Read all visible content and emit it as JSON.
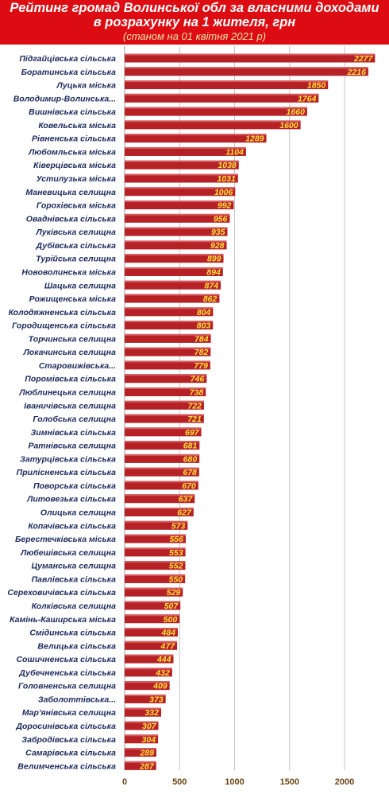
{
  "header": {
    "title_line1": "Рейтинг громад Волинської обл за власними доходами",
    "title_line2": "в розрахунку на 1 жителя, грн",
    "subtitle": "(станом на 01 квітня 2021 р)"
  },
  "colors": {
    "header_bg": "#dc0c12",
    "bar": "#b62126",
    "value_text": "#ffe23a",
    "category_text": "#1b2a5c",
    "tick_text": "#6b4416"
  },
  "chart_data": {
    "type": "bar",
    "orientation": "horizontal",
    "title": "Рейтинг громад Волинської обл за власними доходами в розрахунку на 1 жителя, грн",
    "subtitle": "(станом на 01 квітня 2021 р)",
    "xlabel": "",
    "ylabel": "",
    "xlim": [
      0,
      2200
    ],
    "xticks": [
      0,
      500,
      1000,
      1500,
      2000
    ],
    "grid": true,
    "categories": [
      "Підгайцівська сільська",
      "Боратинська сільська",
      "Луцька міська",
      "Володимир-Волинська...",
      "Вишнівська сільська",
      "Ковельська міська",
      "Рівненська сільська",
      "Любомльська міська",
      "Ківерцівська міська",
      "Устилузька міська",
      "Маневицька селищна",
      "Горохівська міська",
      "Оваднівська сільська",
      "Луківська селищна",
      "Дубівська сільська",
      "Турійська селищна",
      "Нововолинська міська",
      "Шацька селищна",
      "Рожищенська міська",
      "Колодяжненська сільська",
      "Городищенська сільська",
      "Торчинська селищна",
      "Локачинська селищна",
      "Старовижівська...",
      "Поромівська сільська",
      "Люблинецька селищна",
      "Іваничівська селищна",
      "Голобська селищна",
      "Зимнівська сільська",
      "Ратнівська селищна",
      "Затурцівська сільська",
      "Прилісненська сільська",
      "Поворська сільська",
      "Литовезька сільська",
      "Олицька селищна",
      "Копачівська сільська",
      "Берестечківська міська",
      "Любешівська селищна",
      "Цуманська селищна",
      "Павлівська сільська",
      "Сереховичівська сільська",
      "Колківська селищна",
      "Камінь-Каширська міська",
      "Смідинська сільська",
      "Велицька сільська",
      "Сошичненська сільська",
      "Дубечненська сільська",
      "Головненська селищна",
      "Заболоттівська...",
      "Мар'янівська селищна",
      "Доросинівська сільська",
      "Забродівська сільська",
      "Самарівська сільська",
      "Велимченська сільська"
    ],
    "values": [
      2277,
      2216,
      1850,
      1764,
      1660,
      1600,
      1289,
      1104,
      1038,
      1031,
      1006,
      992,
      956,
      935,
      928,
      899,
      894,
      874,
      862,
      804,
      803,
      784,
      782,
      779,
      746,
      738,
      722,
      721,
      697,
      681,
      680,
      678,
      670,
      637,
      627,
      573,
      556,
      553,
      552,
      550,
      529,
      507,
      500,
      484,
      477,
      444,
      432,
      409,
      373,
      332,
      307,
      304,
      289,
      287
    ]
  }
}
